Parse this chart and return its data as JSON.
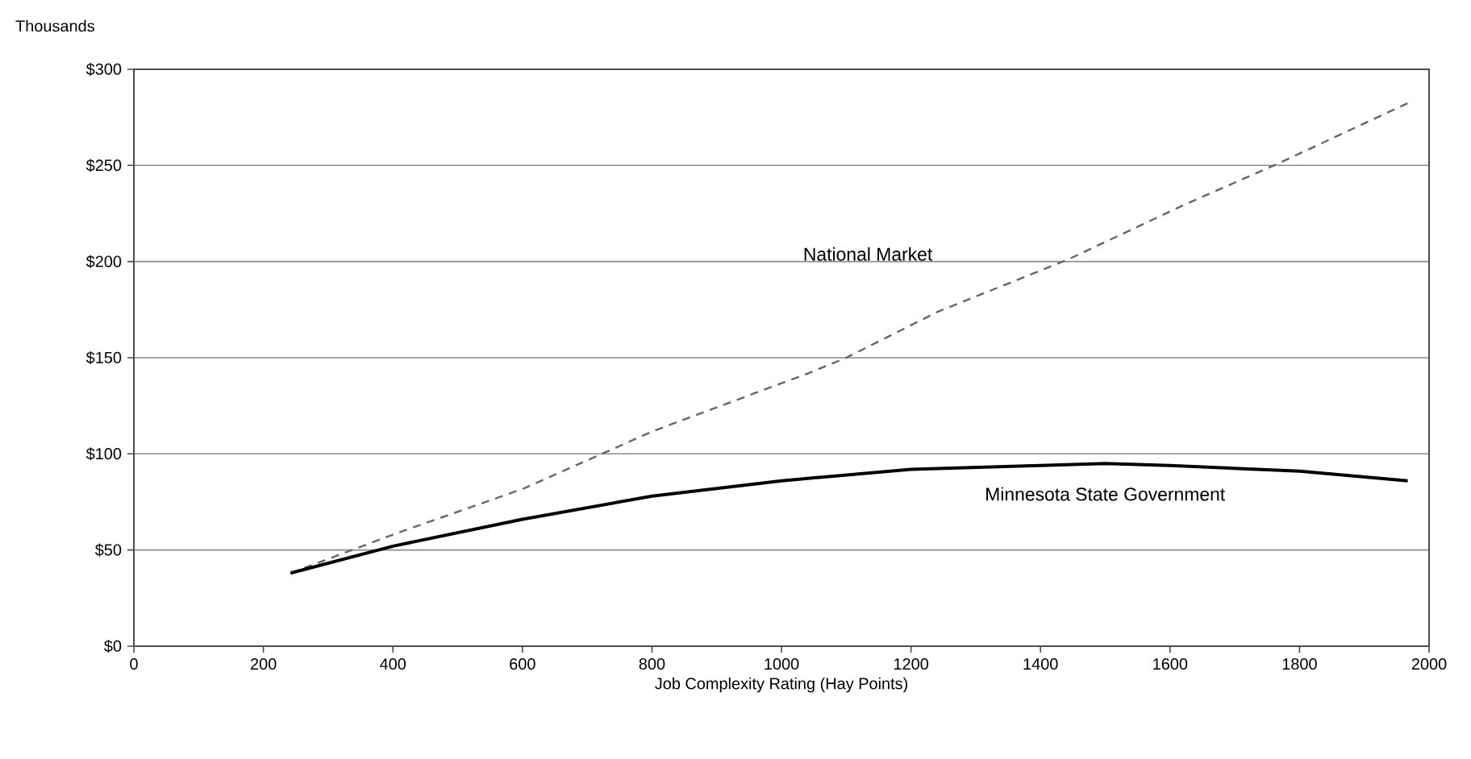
{
  "chart_data": {
    "type": "line",
    "xlabel": "Job Complexity Rating (Hay Points)",
    "ylabel": "Thousands",
    "xlim": [
      0,
      2000
    ],
    "xticks": [
      0,
      200,
      400,
      600,
      800,
      1000,
      1200,
      1400,
      1600,
      1800,
      2000
    ],
    "ylim": [
      0,
      300
    ],
    "yticks": [
      {
        "value": 0,
        "label": "$0"
      },
      {
        "value": 50,
        "label": "$50"
      },
      {
        "value": 100,
        "label": "$100"
      },
      {
        "value": 150,
        "label": "$150"
      },
      {
        "value": 200,
        "label": "$200"
      },
      {
        "value": 250,
        "label": "$250"
      },
      {
        "value": 300,
        "label": "$300"
      }
    ],
    "grid": "y",
    "legend": false,
    "marker": "none",
    "series": [
      {
        "name": "National Market",
        "color": "#666666",
        "line_style": "dashed",
        "x": [
          242,
          400,
          602,
          803,
          1042,
          1100,
          1242,
          1442,
          1625,
          1767,
          1971
        ],
        "values": [
          38,
          58,
          82,
          112,
          142,
          150,
          174,
          201,
          230,
          251,
          283
        ]
      },
      {
        "name": "Minnesota State Government",
        "color": "#000000",
        "line_style": "solid",
        "x": [
          242,
          400,
          600,
          800,
          1000,
          1200,
          1400,
          1500,
          1600,
          1800,
          1967
        ],
        "values": [
          38,
          52,
          66,
          78,
          86,
          92,
          94,
          95,
          94,
          91,
          86
        ]
      }
    ]
  }
}
